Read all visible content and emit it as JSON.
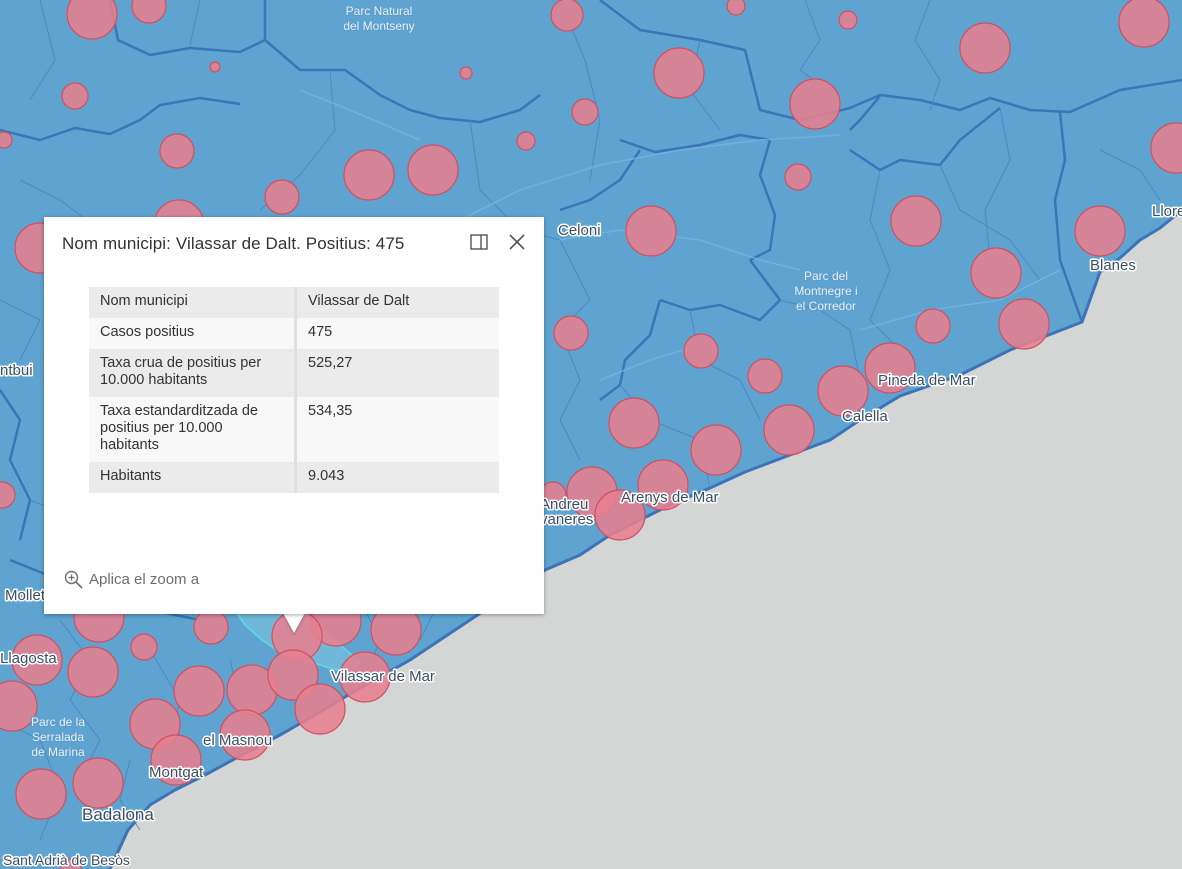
{
  "map": {
    "colors": {
      "land": "#5fa3d0",
      "sea": "#d4d6d6",
      "boundary": "#3b74b8",
      "bubble_fill": "#e6808f",
      "bubble_stroke": "#d0505f",
      "selected": "#5ed2e6"
    },
    "place_labels": [
      {
        "text": "Vilassar de Mar"
      },
      {
        "text": "Arenys de Mar"
      },
      {
        "text": "Pineda de Mar"
      },
      {
        "text": "Calella"
      },
      {
        "text": "Blanes"
      },
      {
        "text": "Llore"
      },
      {
        "text": "Celoni"
      },
      {
        "text": "Badalona"
      },
      {
        "text": "Montgat"
      },
      {
        "text": "el Masnou"
      },
      {
        "text": "Sant Adrià de Besòs"
      },
      {
        "text": "Llagosta"
      },
      {
        "text": "Mollet"
      },
      {
        "text": "ntbui"
      },
      {
        "text": "Andreu"
      },
      {
        "text": "vaneres"
      }
    ],
    "park_labels": [
      {
        "lines": [
          "Parc Natural",
          "del Montseny"
        ]
      },
      {
        "lines": [
          "Parc del",
          "Montnegre i",
          "el Corredor"
        ]
      },
      {
        "lines": [
          "Parc de la",
          "Serralada",
          "de Marina"
        ]
      }
    ]
  },
  "popup": {
    "title": "Nom municipi: Vilassar de Dalt. Positius: 475",
    "dock_icon": "dock-icon",
    "close_icon": "close-icon",
    "rows": [
      {
        "key": "Nom municipi",
        "value": "Vilassar de Dalt"
      },
      {
        "key": "Casos positius",
        "value": "475"
      },
      {
        "key": "Taxa crua de positius per 10.000 habitants",
        "value": "525,27"
      },
      {
        "key": "Taxa estandarditzada de positius per 10.000 habitants",
        "value": "534,35"
      },
      {
        "key": "Habitants",
        "value": "9.043"
      }
    ],
    "zoom_label": "Aplica el zoom a",
    "zoom_icon": "zoom-in-icon"
  }
}
